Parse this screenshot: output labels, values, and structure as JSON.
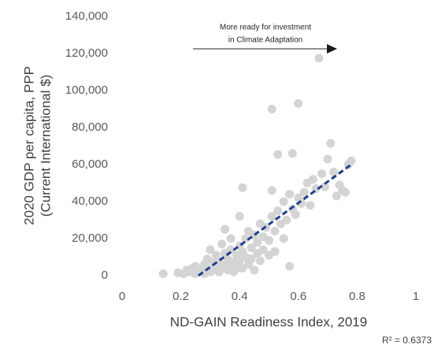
{
  "chart_data": {
    "type": "scatter",
    "annotation": [
      "More ready for investment",
      "in Climate Adaptation"
    ],
    "xlabel": "ND-GAIN Readiness Index, 2019",
    "ylabel": [
      "2020 GDP per capita, PPP",
      "(Current International $)"
    ],
    "r_squared_label": "R² = 0.6373",
    "xlim": [
      0,
      1
    ],
    "ylim": [
      0,
      140000
    ],
    "xticks": [
      0,
      0.2,
      0.4,
      0.6,
      0.8,
      1
    ],
    "yticks": [
      0,
      {
        "value": 20000,
        "label": "20,000"
      },
      {
        "value": 40000,
        "label": "40,000"
      },
      {
        "value": 60000,
        "label": "60,000"
      },
      {
        "value": 80000,
        "label": "80,000"
      },
      {
        "value": 100000,
        "label": "100,000"
      },
      {
        "value": 120000,
        "label": "120,000"
      },
      {
        "value": 140000,
        "label": "140,000"
      }
    ],
    "grid": false,
    "color": "#d4d4d4",
    "x": [
      0.14,
      0.19,
      0.21,
      0.22,
      0.23,
      0.24,
      0.25,
      0.25,
      0.26,
      0.27,
      0.28,
      0.28,
      0.29,
      0.29,
      0.3,
      0.3,
      0.31,
      0.31,
      0.32,
      0.32,
      0.33,
      0.33,
      0.34,
      0.34,
      0.35,
      0.35,
      0.35,
      0.36,
      0.36,
      0.37,
      0.37,
      0.37,
      0.38,
      0.38,
      0.39,
      0.39,
      0.4,
      0.4,
      0.4,
      0.41,
      0.41,
      0.41,
      0.42,
      0.42,
      0.43,
      0.43,
      0.44,
      0.44,
      0.45,
      0.45,
      0.46,
      0.46,
      0.47,
      0.47,
      0.48,
      0.48,
      0.49,
      0.5,
      0.5,
      0.51,
      0.51,
      0.51,
      0.52,
      0.52,
      0.53,
      0.53,
      0.54,
      0.55,
      0.55,
      0.56,
      0.57,
      0.57,
      0.58,
      0.58,
      0.59,
      0.6,
      0.6,
      0.61,
      0.62,
      0.63,
      0.64,
      0.65,
      0.66,
      0.67,
      0.68,
      0.69,
      0.7,
      0.71,
      0.72,
      0.73,
      0.74,
      0.75,
      0.76,
      0.77,
      0.78
    ],
    "values": [
      1000,
      1500,
      1000,
      3000,
      2000,
      4000,
      1000,
      5000,
      2000,
      3000,
      6000,
      1000,
      4000,
      9000,
      2000,
      14000,
      7000,
      3000,
      5000,
      11000,
      2000,
      8000,
      4000,
      17000,
      6000,
      12000,
      25000,
      3000,
      9000,
      5000,
      14000,
      20000,
      7000,
      2000,
      11000,
      4000,
      16000,
      8000,
      32000,
      13000,
      47500,
      4000,
      20000,
      10000,
      6000,
      24000,
      15000,
      9000,
      22000,
      3000,
      18000,
      12000,
      28000,
      8000,
      21000,
      14000,
      26000,
      19000,
      11000,
      46000,
      90000,
      32000,
      24000,
      13000,
      65500,
      35000,
      28000,
      20000,
      40000,
      30000,
      5000,
      44000,
      66000,
      36000,
      33000,
      93000,
      42000,
      39000,
      45000,
      50000,
      38000,
      52000,
      47000,
      117500,
      55000,
      48000,
      63000,
      71500,
      56000,
      43000,
      49000,
      46000,
      45000,
      60000,
      62000
    ],
    "trendline": {
      "color": "#1f3f8f",
      "x": [
        0.26,
        0.78
      ],
      "y": [
        0,
        60000
      ]
    }
  }
}
